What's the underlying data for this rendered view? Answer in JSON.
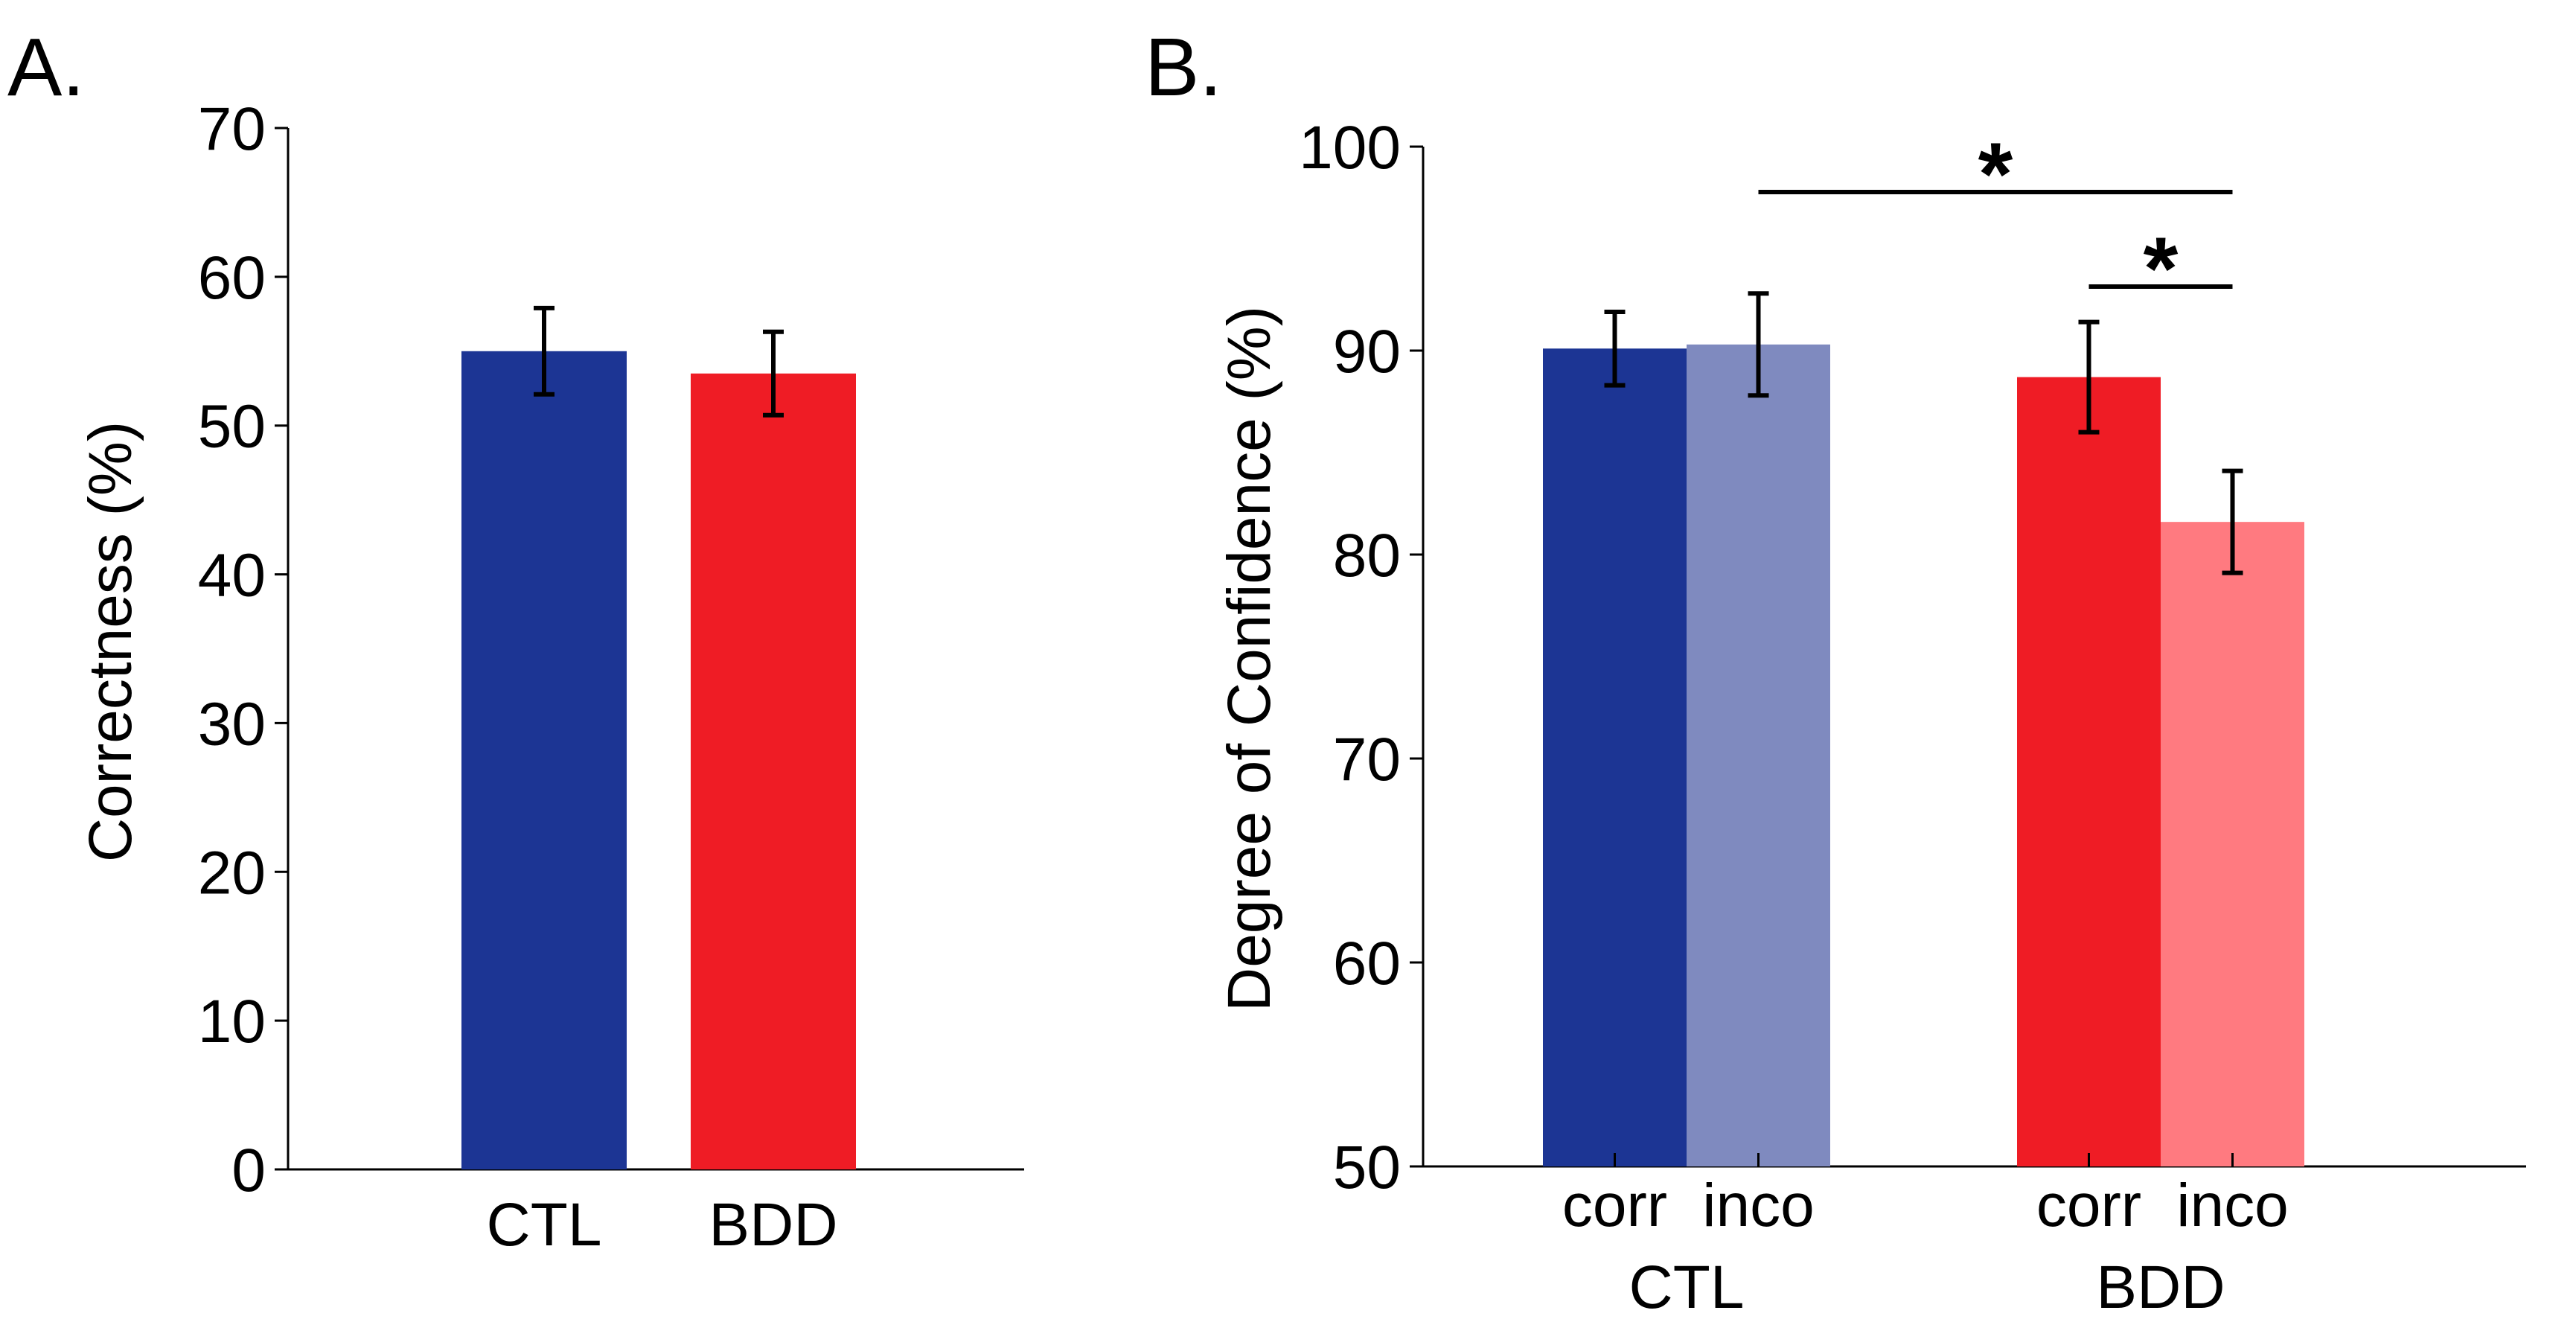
{
  "chart_data": [
    {
      "panel": "A.",
      "type": "bar",
      "ylabel": "Correctness (%)",
      "xlabel": "",
      "ylim": [
        0,
        70
      ],
      "yticks": [
        0,
        10,
        20,
        30,
        40,
        50,
        60,
        70
      ],
      "grid": false,
      "categories": [
        "CTL",
        "BDD"
      ],
      "values": [
        55.0,
        53.5
      ],
      "errors": [
        2.9,
        2.8
      ],
      "colors": [
        "#1c3594",
        "#ef1c25"
      ]
    },
    {
      "panel": "B.",
      "type": "bar",
      "ylabel": "Degree of Confidence (%)",
      "xlabel": "",
      "ylim": [
        50,
        100
      ],
      "yticks": [
        50,
        60,
        70,
        80,
        90,
        100
      ],
      "grid": false,
      "groups": [
        "CTL",
        "BDD"
      ],
      "subcategories": [
        "corr",
        "inco"
      ],
      "series": [
        {
          "name": "corr",
          "values": [
            90.1,
            88.7
          ],
          "errors": [
            1.8,
            2.7
          ]
        },
        {
          "name": "inco",
          "values": [
            90.3,
            81.6
          ],
          "errors": [
            2.5,
            2.5
          ]
        }
      ],
      "colors": {
        "CTL": [
          "#1c3594",
          "#7f8abf"
        ],
        "BDD": [
          "#ef1c25",
          "#ff7a80"
        ]
      },
      "annotations": [
        {
          "label": "*",
          "from": "CTL inco",
          "to": "BDD inco"
        },
        {
          "label": "*",
          "from": "BDD corr",
          "to": "BDD inco"
        }
      ]
    }
  ]
}
